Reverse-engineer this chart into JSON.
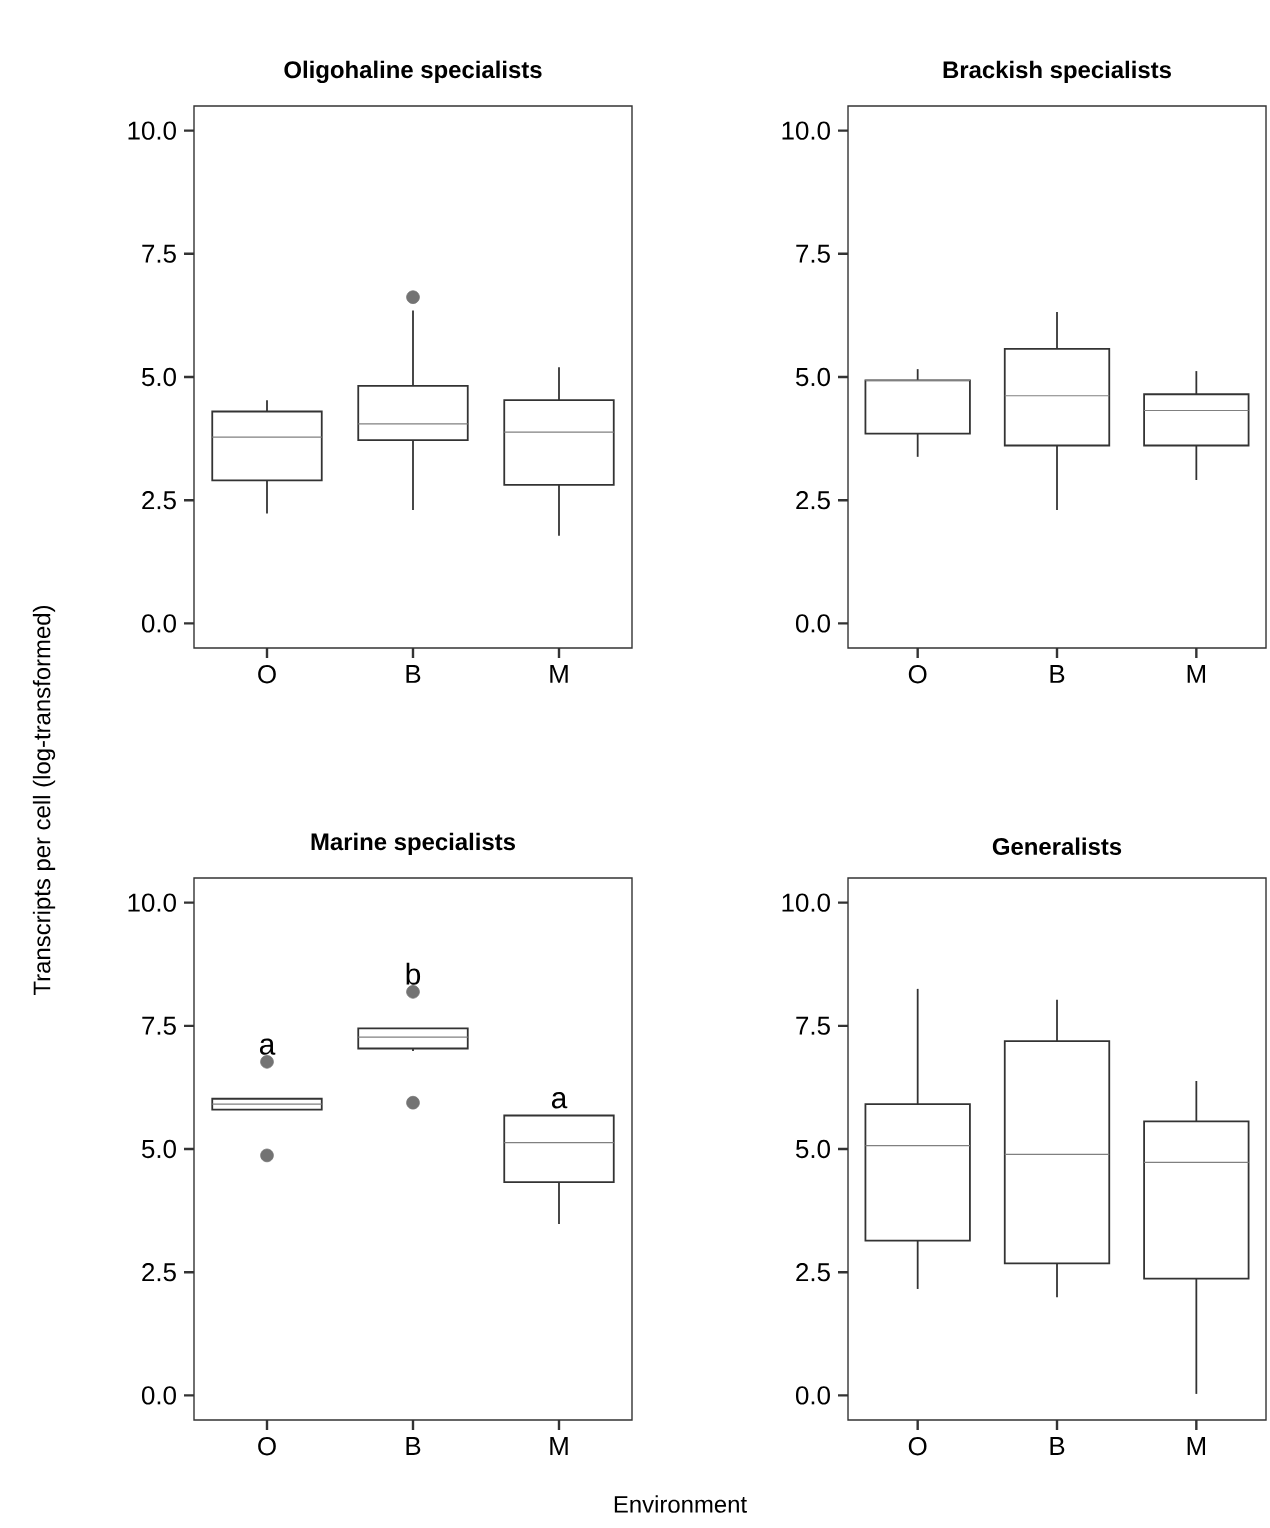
{
  "chart_data": [
    {
      "type": "box",
      "title": "Oligohaline specialists",
      "categories": [
        "O",
        "B",
        "M"
      ],
      "ylim": [
        -0.5,
        10.5
      ],
      "yticks": [
        {
          "value": 0,
          "label": "0.0"
        },
        {
          "value": 2.5,
          "label": "2.5"
        },
        {
          "value": 5,
          "label": "5.0"
        },
        {
          "value": 7.5,
          "label": "7.5"
        },
        {
          "value": 10,
          "label": "10.0"
        }
      ],
      "boxes": [
        {
          "low": 2.23,
          "q1": 2.9,
          "median": 3.78,
          "q3": 4.3,
          "high": 4.53
        },
        {
          "low": 2.3,
          "q1": 3.72,
          "median": 4.05,
          "q3": 4.82,
          "high": 6.35,
          "outliers": [
            6.62
          ]
        },
        {
          "low": 1.78,
          "q1": 2.81,
          "median": 3.88,
          "q3": 4.53,
          "high": 5.2
        }
      ]
    },
    {
      "type": "box",
      "title": "Brackish specialists",
      "categories": [
        "O",
        "B",
        "M"
      ],
      "ylim": [
        -0.5,
        10.5
      ],
      "yticks": [
        {
          "value": 0,
          "label": "0.0"
        },
        {
          "value": 2.5,
          "label": "2.5"
        },
        {
          "value": 5,
          "label": "5.0"
        },
        {
          "value": 7.5,
          "label": "7.5"
        },
        {
          "value": 10,
          "label": "10.0"
        }
      ],
      "boxes": [
        {
          "low": 3.38,
          "q1": 3.85,
          "median": 4.93,
          "q3": 4.93,
          "high": 5.16
        },
        {
          "low": 2.3,
          "q1": 3.61,
          "median": 4.62,
          "q3": 5.57,
          "high": 6.32
        },
        {
          "low": 2.91,
          "q1": 3.61,
          "median": 4.32,
          "q3": 4.65,
          "high": 5.12
        }
      ]
    },
    {
      "type": "box",
      "title": "Marine specialists",
      "xlabel": "Environment",
      "ylabel": "Transcripts per cell (log-transformed)",
      "categories": [
        "O",
        "B",
        "M"
      ],
      "ylim": [
        -0.5,
        10.5
      ],
      "yticks": [
        {
          "value": 0,
          "label": "0.0"
        },
        {
          "value": 2.5,
          "label": "2.5"
        },
        {
          "value": 5,
          "label": "5.0"
        },
        {
          "value": 7.5,
          "label": "7.5"
        },
        {
          "value": 10,
          "label": "10.0"
        }
      ],
      "boxes": [
        {
          "low": 5.8,
          "q1": 5.8,
          "median": 5.91,
          "q3": 6.02,
          "high": 6.02,
          "outliers": [
            6.77,
            4.87
          ]
        },
        {
          "low": 6.99,
          "q1": 7.04,
          "median": 7.27,
          "q3": 7.45,
          "high": 7.45,
          "outliers": [
            8.19,
            5.94
          ]
        },
        {
          "low": 3.48,
          "q1": 4.33,
          "median": 5.13,
          "q3": 5.68,
          "high": 5.68
        }
      ],
      "annotations": [
        "a",
        "b",
        "a"
      ]
    },
    {
      "type": "box",
      "title": "Generalists",
      "categories": [
        "O",
        "B",
        "M"
      ],
      "ylim": [
        -0.5,
        10.5
      ],
      "yticks": [
        {
          "value": 0,
          "label": "0.0"
        },
        {
          "value": 2.5,
          "label": "2.5"
        },
        {
          "value": 5,
          "label": "5.0"
        },
        {
          "value": 7.5,
          "label": "7.5"
        },
        {
          "value": 10,
          "label": "10.0"
        }
      ],
      "boxes": [
        {
          "low": 2.16,
          "q1": 3.14,
          "median": 5.07,
          "q3": 5.91,
          "high": 8.25
        },
        {
          "low": 1.99,
          "q1": 2.68,
          "median": 4.89,
          "q3": 7.19,
          "high": 8.03
        },
        {
          "low": 0.03,
          "q1": 2.37,
          "median": 4.73,
          "q3": 5.56,
          "high": 6.38
        }
      ]
    }
  ]
}
